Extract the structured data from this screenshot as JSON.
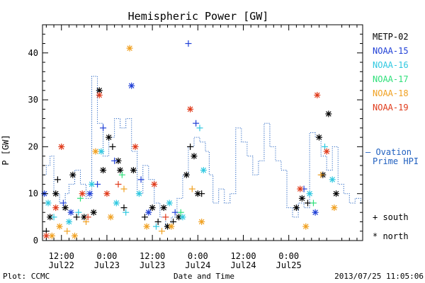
{
  "chart_data": {
    "type": "scatter",
    "title": "Hemispheric Power [GW]",
    "ylabel": "P [GW]",
    "xlabel": "Date and Time",
    "ylim": [
      0,
      46
    ],
    "xlim": [
      "2013-07-22T07:00",
      "2013-07-25T19:30"
    ],
    "yticks": [
      0,
      10,
      20,
      30,
      40
    ],
    "xticks": [
      {
        "t": "2013-07-22T12:00",
        "top": "12:00",
        "bottom": "Jul22"
      },
      {
        "t": "2013-07-23T00:00",
        "top": "0:00",
        "bottom": "Jul23"
      },
      {
        "t": "2013-07-23T12:00",
        "top": "12:00",
        "bottom": "Jul23"
      },
      {
        "t": "2013-07-24T00:00",
        "top": "0:00",
        "bottom": "Jul24"
      },
      {
        "t": "2013-07-24T12:00",
        "top": "12:00",
        "bottom": "Jul24"
      },
      {
        "t": "2013-07-25T00:00",
        "top": "0:00",
        "bottom": "Jul25"
      }
    ],
    "legend": [
      {
        "name": "METP-02",
        "color": "#000000"
      },
      {
        "name": "NOAA-15",
        "color": "#1f3fd6"
      },
      {
        "name": "NOAA-16",
        "color": "#2fc8e0"
      },
      {
        "name": "NOAA-17",
        "color": "#2fe07a"
      },
      {
        "name": "NOAA-18",
        "color": "#f0a020"
      },
      {
        "name": "NOAA-19",
        "color": "#e03a1a"
      }
    ],
    "ovation_label": [
      "— Ovation",
      "Prime HPI"
    ],
    "ovation_color": "#2060c0",
    "marker_key": [
      {
        "symbol": "+",
        "label": "south"
      },
      {
        "symbol": "*",
        "label": "north"
      }
    ],
    "ovation": [
      [
        "2013-07-22T07:00",
        14
      ],
      [
        "2013-07-22T08:00",
        16
      ],
      [
        "2013-07-22T09:00",
        18
      ],
      [
        "2013-07-22T10:00",
        10
      ],
      [
        "2013-07-22T11:30",
        8
      ],
      [
        "2013-07-22T13:00",
        10
      ],
      [
        "2013-07-22T14:00",
        12
      ],
      [
        "2013-07-22T15:30",
        15
      ],
      [
        "2013-07-22T17:00",
        12
      ],
      [
        "2013-07-22T18:30",
        9
      ],
      [
        "2013-07-22T20:00",
        35
      ],
      [
        "2013-07-22T21:30",
        25
      ],
      [
        "2013-07-22T23:00",
        18
      ],
      [
        "2013-07-23T00:30",
        22
      ],
      [
        "2013-07-23T02:00",
        26
      ],
      [
        "2013-07-23T03:30",
        24
      ],
      [
        "2013-07-23T05:00",
        26
      ],
      [
        "2013-07-23T06:30",
        19
      ],
      [
        "2013-07-23T08:00",
        10
      ],
      [
        "2013-07-23T09:30",
        16
      ],
      [
        "2013-07-23T11:00",
        13
      ],
      [
        "2013-07-23T12:30",
        8
      ],
      [
        "2013-07-23T14:00",
        5
      ],
      [
        "2013-07-23T15:30",
        3
      ],
      [
        "2013-07-23T17:00",
        5
      ],
      [
        "2013-07-23T18:30",
        9
      ],
      [
        "2013-07-23T20:00",
        14
      ],
      [
        "2013-07-23T21:30",
        20
      ],
      [
        "2013-07-23T23:00",
        22
      ],
      [
        "2013-07-24T00:30",
        21
      ],
      [
        "2013-07-24T02:00",
        19
      ],
      [
        "2013-07-24T03:00",
        14
      ],
      [
        "2013-07-24T04:00",
        8
      ],
      [
        "2013-07-24T05:30",
        11
      ],
      [
        "2013-07-24T07:00",
        8
      ],
      [
        "2013-07-24T08:30",
        10
      ],
      [
        "2013-07-24T10:00",
        24
      ],
      [
        "2013-07-24T11:30",
        21
      ],
      [
        "2013-07-24T13:00",
        18
      ],
      [
        "2013-07-24T14:30",
        14
      ],
      [
        "2013-07-24T16:00",
        17
      ],
      [
        "2013-07-24T17:30",
        25
      ],
      [
        "2013-07-24T19:00",
        20
      ],
      [
        "2013-07-24T20:30",
        17
      ],
      [
        "2013-07-24T22:00",
        15
      ],
      [
        "2013-07-24T23:30",
        7
      ],
      [
        "2013-07-25T01:00",
        5
      ],
      [
        "2013-07-25T02:30",
        8
      ],
      [
        "2013-07-25T04:00",
        7
      ],
      [
        "2013-07-25T05:30",
        23
      ],
      [
        "2013-07-25T07:00",
        22
      ],
      [
        "2013-07-25T08:30",
        18
      ],
      [
        "2013-07-25T10:00",
        15
      ],
      [
        "2013-07-25T11:30",
        20
      ],
      [
        "2013-07-25T13:00",
        12
      ],
      [
        "2013-07-25T14:30",
        10
      ],
      [
        "2013-07-25T16:00",
        8
      ],
      [
        "2013-07-25T17:30",
        9
      ],
      [
        "2013-07-25T19:00",
        8
      ]
    ],
    "series": [
      {
        "name": "METP-02",
        "color": "#000000",
        "points": [
          [
            "2013-07-22T08:00",
            2,
            "+"
          ],
          [
            "2013-07-22T09:00",
            5,
            "*"
          ],
          [
            "2013-07-22T10:30",
            10,
            "*"
          ],
          [
            "2013-07-22T11:00",
            13,
            "+"
          ],
          [
            "2013-07-22T13:00",
            7,
            "*"
          ],
          [
            "2013-07-22T15:00",
            14,
            "*"
          ],
          [
            "2013-07-22T16:00",
            5,
            "+"
          ],
          [
            "2013-07-22T18:00",
            5,
            "*"
          ],
          [
            "2013-07-22T20:30",
            6,
            "*"
          ],
          [
            "2013-07-22T22:00",
            32,
            "*"
          ],
          [
            "2013-07-22T23:00",
            15,
            "*"
          ],
          [
            "2013-07-23T00:30",
            22,
            "*"
          ],
          [
            "2013-07-23T01:30",
            20,
            "+"
          ],
          [
            "2013-07-23T03:00",
            17,
            "*"
          ],
          [
            "2013-07-23T03:30",
            15,
            "*"
          ],
          [
            "2013-07-23T04:30",
            7,
            "+"
          ],
          [
            "2013-07-23T07:00",
            15,
            "*"
          ],
          [
            "2013-07-23T10:00",
            5,
            "+"
          ],
          [
            "2013-07-23T12:00",
            7,
            "*"
          ],
          [
            "2013-07-23T13:30",
            4,
            "+"
          ],
          [
            "2013-07-23T15:00",
            7,
            "*"
          ],
          [
            "2013-07-23T16:00",
            3,
            "*"
          ],
          [
            "2013-07-23T17:30",
            4,
            "+"
          ],
          [
            "2013-07-23T19:00",
            5,
            "*"
          ],
          [
            "2013-07-23T21:00",
            14,
            "*"
          ],
          [
            "2013-07-23T22:00",
            20,
            "+"
          ],
          [
            "2013-07-23T23:00",
            18,
            "*"
          ],
          [
            "2013-07-24T00:00",
            10,
            "*"
          ],
          [
            "2013-07-24T01:00",
            10,
            "+"
          ],
          [
            "2013-07-25T02:00",
            7,
            "*"
          ],
          [
            "2013-07-25T03:30",
            9,
            "*"
          ],
          [
            "2013-07-25T05:00",
            8,
            "+"
          ],
          [
            "2013-07-25T08:00",
            22,
            "*"
          ],
          [
            "2013-07-25T09:00",
            14,
            "*"
          ],
          [
            "2013-07-25T10:30",
            27,
            "*"
          ],
          [
            "2013-07-25T12:30",
            10,
            "*"
          ]
        ]
      },
      {
        "name": "NOAA-15",
        "color": "#1f3fd6",
        "points": [
          [
            "2013-07-22T07:30",
            10,
            "*"
          ],
          [
            "2013-07-22T12:30",
            8,
            "+"
          ],
          [
            "2013-07-22T14:30",
            6,
            "*"
          ],
          [
            "2013-07-22T19:30",
            10,
            "*"
          ],
          [
            "2013-07-22T21:30",
            12,
            "+"
          ],
          [
            "2013-07-22T23:00",
            24,
            "+"
          ],
          [
            "2013-07-23T02:00",
            17,
            "+"
          ],
          [
            "2013-07-23T06:30",
            33,
            "*"
          ],
          [
            "2013-07-23T09:00",
            13,
            "+"
          ],
          [
            "2013-07-23T11:00",
            6,
            "*"
          ],
          [
            "2013-07-23T18:00",
            6,
            "+"
          ],
          [
            "2013-07-23T21:30",
            42,
            "+"
          ],
          [
            "2013-07-23T23:30",
            25,
            "+"
          ],
          [
            "2013-07-25T04:00",
            11,
            "+"
          ],
          [
            "2013-07-25T07:00",
            6,
            "*"
          ]
        ]
      },
      {
        "name": "NOAA-16",
        "color": "#2fc8e0",
        "points": [
          [
            "2013-07-22T08:30",
            8,
            "*"
          ],
          [
            "2013-07-22T10:00",
            5,
            "+"
          ],
          [
            "2013-07-22T14:00",
            4,
            "*"
          ],
          [
            "2013-07-22T16:30",
            6,
            "+"
          ],
          [
            "2013-07-22T20:00",
            12,
            "*"
          ],
          [
            "2013-07-22T22:30",
            19,
            "*"
          ],
          [
            "2013-07-23T02:30",
            8,
            "*"
          ],
          [
            "2013-07-23T05:00",
            6,
            "+"
          ],
          [
            "2013-07-23T08:30",
            10,
            "*"
          ],
          [
            "2013-07-23T13:00",
            3,
            "+"
          ],
          [
            "2013-07-23T16:30",
            8,
            "*"
          ],
          [
            "2013-07-23T20:00",
            5,
            "*"
          ],
          [
            "2013-07-24T00:30",
            24,
            "+"
          ],
          [
            "2013-07-24T01:30",
            15,
            "*"
          ],
          [
            "2013-07-25T05:30",
            10,
            "*"
          ],
          [
            "2013-07-25T09:30",
            20,
            "+"
          ],
          [
            "2013-07-25T11:30",
            13,
            "*"
          ]
        ]
      },
      {
        "name": "NOAA-17",
        "color": "#2fe07a",
        "points": [
          [
            "2013-07-22T17:00",
            9,
            "+"
          ],
          [
            "2013-07-23T04:00",
            14,
            "+"
          ],
          [
            "2013-07-23T19:30",
            6,
            "+"
          ],
          [
            "2013-07-25T06:30",
            8,
            "+"
          ]
        ]
      },
      {
        "name": "NOAA-18",
        "color": "#f0a020",
        "points": [
          [
            "2013-07-22T09:30",
            1,
            "*"
          ],
          [
            "2013-07-22T11:30",
            3,
            "*"
          ],
          [
            "2013-07-22T13:30",
            2,
            "+"
          ],
          [
            "2013-07-22T15:30",
            1,
            "*"
          ],
          [
            "2013-07-22T18:30",
            4,
            "+"
          ],
          [
            "2013-07-22T21:00",
            19,
            "*"
          ],
          [
            "2013-07-23T01:00",
            5,
            "*"
          ],
          [
            "2013-07-23T04:30",
            11,
            "+"
          ],
          [
            "2013-07-23T06:00",
            41,
            "*"
          ],
          [
            "2013-07-23T10:30",
            3,
            "*"
          ],
          [
            "2013-07-23T14:30",
            2,
            "+"
          ],
          [
            "2013-07-23T17:00",
            3,
            "*"
          ],
          [
            "2013-07-23T22:30",
            11,
            "+"
          ],
          [
            "2013-07-24T01:00",
            4,
            "*"
          ],
          [
            "2013-07-25T04:30",
            3,
            "*"
          ],
          [
            "2013-07-25T08:30",
            14,
            "+"
          ],
          [
            "2013-07-25T12:00",
            7,
            "*"
          ]
        ]
      },
      {
        "name": "NOAA-19",
        "color": "#e03a1a",
        "points": [
          [
            "2013-07-22T08:00",
            1,
            "*"
          ],
          [
            "2013-07-22T10:30",
            7,
            "*"
          ],
          [
            "2013-07-22T12:00",
            20,
            "*"
          ],
          [
            "2013-07-22T17:30",
            10,
            "*"
          ],
          [
            "2013-07-22T19:00",
            5,
            "+"
          ],
          [
            "2013-07-22T22:00",
            31,
            "*"
          ],
          [
            "2013-07-23T00:00",
            10,
            "*"
          ],
          [
            "2013-07-23T03:00",
            12,
            "+"
          ],
          [
            "2013-07-23T07:30",
            20,
            "*"
          ],
          [
            "2013-07-23T12:30",
            12,
            "*"
          ],
          [
            "2013-07-23T15:30",
            5,
            "+"
          ],
          [
            "2013-07-23T22:00",
            28,
            "*"
          ],
          [
            "2013-07-25T03:00",
            11,
            "*"
          ],
          [
            "2013-07-25T07:30",
            31,
            "*"
          ],
          [
            "2013-07-25T10:00",
            19,
            "*"
          ]
        ]
      }
    ]
  },
  "footer": {
    "left": "Plot: CCMC",
    "right": "2013/07/25 11:05:06"
  }
}
